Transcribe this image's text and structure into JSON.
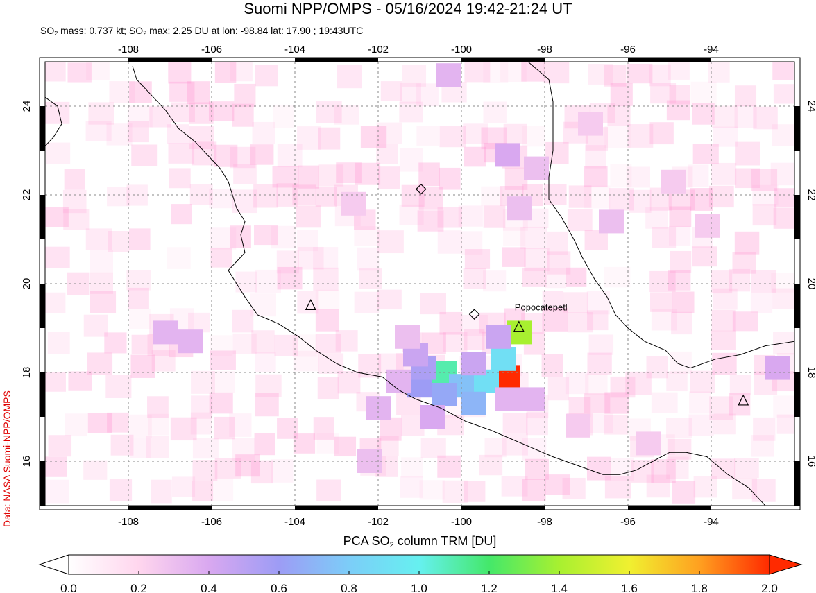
{
  "title": "Suomi NPP/OMPS - 05/16/2024 19:42-21:24 UT",
  "subtitle": {
    "p1": "SO",
    "s1": "2",
    "p2": " mass: 0.737 kt; SO",
    "s2": "2",
    "p3": " max: 2.25 DU at lon: -98.84 lat: 17.90 ; 19:43UTC"
  },
  "credit": "Data: NASA Suomi-NPP/OMPS",
  "colorbar": {
    "title_a": "PCA SO",
    "title_sub": "2",
    "title_b": " column TRM [DU]",
    "ticks": [
      "0.0",
      "0.2",
      "0.4",
      "0.6",
      "0.8",
      "1.0",
      "1.2",
      "1.4",
      "1.6",
      "1.8",
      "2.0"
    ],
    "range": [
      0.0,
      2.0
    ],
    "colors": [
      "#ffffff",
      "#ffd6ee",
      "#d9a8f0",
      "#9d9cf5",
      "#7ccdf8",
      "#66f0f0",
      "#44e86a",
      "#a8f030",
      "#f0f030",
      "#ffa020",
      "#ff2a00"
    ]
  },
  "map": {
    "lon_range": [
      -110,
      -92
    ],
    "lat_range": [
      15,
      25
    ],
    "lon_ticks": [
      "-108",
      "-106",
      "-104",
      "-102",
      "-100",
      "-98",
      "-96",
      "-94"
    ],
    "lat_ticks": [
      "16",
      "18",
      "20",
      "22",
      "24"
    ],
    "grid": true,
    "volcano_label": "Popocatepetl",
    "volcanoes": [
      {
        "lon": -98.62,
        "lat": 19.02
      },
      {
        "lon": -103.62,
        "lat": 19.51
      },
      {
        "lon": -93.23,
        "lat": 17.36
      }
    ],
    "diamonds": [
      {
        "lon": -100.97,
        "lat": 22.13
      },
      {
        "lon": -99.69,
        "lat": 19.31
      }
    ],
    "so2_cells": [
      {
        "lon": -98.6,
        "lat": 18.9,
        "du": 1.4
      },
      {
        "lon": -98.9,
        "lat": 17.9,
        "du": 2.25
      },
      {
        "lon": -99.0,
        "lat": 18.3,
        "du": 0.9
      },
      {
        "lon": -99.4,
        "lat": 17.8,
        "du": 0.9
      },
      {
        "lon": -100.4,
        "lat": 18.0,
        "du": 1.1
      },
      {
        "lon": -100.0,
        "lat": 17.7,
        "du": 0.75
      },
      {
        "lon": -99.7,
        "lat": 17.3,
        "du": 0.7
      },
      {
        "lon": -100.4,
        "lat": 17.5,
        "du": 0.65
      },
      {
        "lon": -101.0,
        "lat": 17.7,
        "du": 0.6
      },
      {
        "lon": -100.9,
        "lat": 18.1,
        "du": 0.55
      },
      {
        "lon": -101.1,
        "lat": 18.4,
        "du": 0.45
      },
      {
        "lon": -99.1,
        "lat": 18.8,
        "du": 0.45
      },
      {
        "lon": -98.3,
        "lat": 17.4,
        "du": 0.35
      },
      {
        "lon": -98.9,
        "lat": 17.4,
        "du": 0.35
      },
      {
        "lon": -99.7,
        "lat": 18.2,
        "du": 0.45
      },
      {
        "lon": -100.7,
        "lat": 17.0,
        "du": 0.4
      },
      {
        "lon": -102.0,
        "lat": 17.2,
        "du": 0.35
      },
      {
        "lon": -101.5,
        "lat": 17.8,
        "du": 0.35
      },
      {
        "lon": -101.3,
        "lat": 18.8,
        "du": 0.3
      },
      {
        "lon": -106.5,
        "lat": 18.7,
        "du": 0.35
      },
      {
        "lon": -107.1,
        "lat": 18.9,
        "du": 0.35
      },
      {
        "lon": -92.4,
        "lat": 18.1,
        "du": 0.4
      },
      {
        "lon": -100.3,
        "lat": 24.7,
        "du": 0.35
      },
      {
        "lon": -98.9,
        "lat": 22.9,
        "du": 0.4
      },
      {
        "lon": -98.2,
        "lat": 22.6,
        "du": 0.3
      },
      {
        "lon": -98.6,
        "lat": 21.7,
        "du": 0.3
      },
      {
        "lon": -96.4,
        "lat": 21.4,
        "du": 0.3
      },
      {
        "lon": -102.2,
        "lat": 16.0,
        "du": 0.3
      },
      {
        "lon": -102.6,
        "lat": 21.8,
        "du": 0.25
      },
      {
        "lon": -94.9,
        "lat": 22.3,
        "du": 0.25
      },
      {
        "lon": -96.9,
        "lat": 23.6,
        "du": 0.25
      },
      {
        "lon": -94.1,
        "lat": 21.3,
        "du": 0.25
      },
      {
        "lon": -97.2,
        "lat": 16.8,
        "du": 0.25
      },
      {
        "lon": -95.5,
        "lat": 16.4,
        "du": 0.25
      }
    ],
    "coast": [
      [
        -107.9,
        24.9
      ],
      [
        -107.8,
        24.6
      ],
      [
        -107.5,
        24.3
      ],
      [
        -107.1,
        23.9
      ],
      [
        -106.8,
        23.5
      ],
      [
        -106.4,
        23.2
      ],
      [
        -106.1,
        22.9
      ],
      [
        -105.8,
        22.6
      ],
      [
        -105.6,
        22.3
      ],
      [
        -105.5,
        22.0
      ],
      [
        -105.4,
        21.7
      ],
      [
        -105.2,
        21.4
      ],
      [
        -105.3,
        21.1
      ],
      [
        -105.2,
        20.7
      ],
      [
        -105.4,
        20.5
      ],
      [
        -105.6,
        20.3
      ],
      [
        -105.4,
        20.0
      ],
      [
        -105.2,
        19.7
      ],
      [
        -104.9,
        19.3
      ],
      [
        -104.4,
        19.1
      ],
      [
        -103.9,
        18.8
      ],
      [
        -103.5,
        18.5
      ],
      [
        -103.0,
        18.2
      ],
      [
        -102.5,
        18.0
      ],
      [
        -101.9,
        17.9
      ],
      [
        -101.5,
        17.6
      ],
      [
        -101.1,
        17.4
      ],
      [
        -100.5,
        17.2
      ],
      [
        -99.9,
        16.9
      ],
      [
        -99.3,
        16.7
      ],
      [
        -98.8,
        16.5
      ],
      [
        -98.3,
        16.3
      ],
      [
        -97.8,
        16.1
      ],
      [
        -97.2,
        15.9
      ],
      [
        -96.6,
        15.7
      ],
      [
        -96.2,
        15.7
      ],
      [
        -95.8,
        15.8
      ],
      [
        -95.4,
        16.0
      ],
      [
        -95.0,
        16.2
      ],
      [
        -94.6,
        16.2
      ],
      [
        -94.1,
        16.1
      ],
      [
        -93.6,
        15.7
      ],
      [
        -93.1,
        15.4
      ],
      [
        -92.7,
        15.0
      ]
    ],
    "gulf_coast": [
      [
        -98.4,
        25.0
      ],
      [
        -97.9,
        24.6
      ],
      [
        -97.8,
        24.1
      ],
      [
        -97.8,
        23.6
      ],
      [
        -97.8,
        23.0
      ],
      [
        -97.9,
        22.4
      ],
      [
        -97.9,
        21.9
      ],
      [
        -97.6,
        21.5
      ],
      [
        -97.3,
        21.0
      ],
      [
        -97.1,
        20.6
      ],
      [
        -96.8,
        20.1
      ],
      [
        -96.5,
        19.7
      ],
      [
        -96.3,
        19.3
      ],
      [
        -96.0,
        19.0
      ],
      [
        -95.6,
        18.7
      ],
      [
        -95.1,
        18.5
      ],
      [
        -94.8,
        18.2
      ],
      [
        -94.5,
        18.1
      ],
      [
        -93.9,
        18.3
      ],
      [
        -93.3,
        18.4
      ],
      [
        -92.7,
        18.6
      ],
      [
        -92.0,
        18.7
      ]
    ],
    "baja": [
      [
        -110,
        24.2
      ],
      [
        -109.7,
        24.0
      ],
      [
        -109.6,
        23.6
      ],
      [
        -109.8,
        23.3
      ],
      [
        -110,
        23.1
      ]
    ]
  }
}
